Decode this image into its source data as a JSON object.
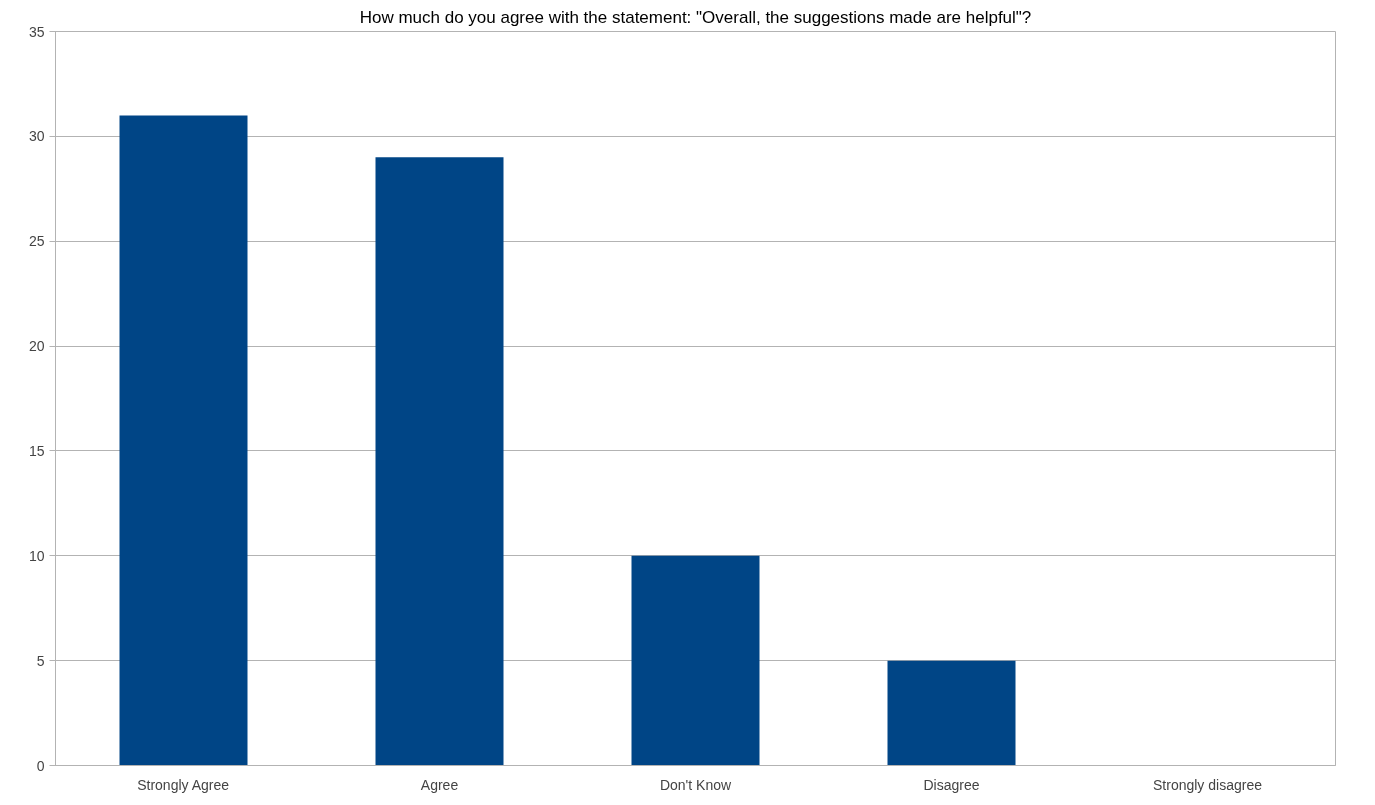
{
  "chart_data": {
    "type": "bar",
    "title": "How much do you agree with the statement: \"Overall, the suggestions made are helpful\"?",
    "categories": [
      "Strongly Agree",
      "Agree",
      "Don't Know",
      "Disagree",
      "Strongly disagree"
    ],
    "values": [
      31,
      29,
      10,
      5,
      0
    ],
    "color": "#004586",
    "ylim": [
      0,
      35
    ],
    "yticks": [
      0,
      5,
      10,
      15,
      20,
      25,
      30,
      35
    ],
    "grid": "y"
  }
}
